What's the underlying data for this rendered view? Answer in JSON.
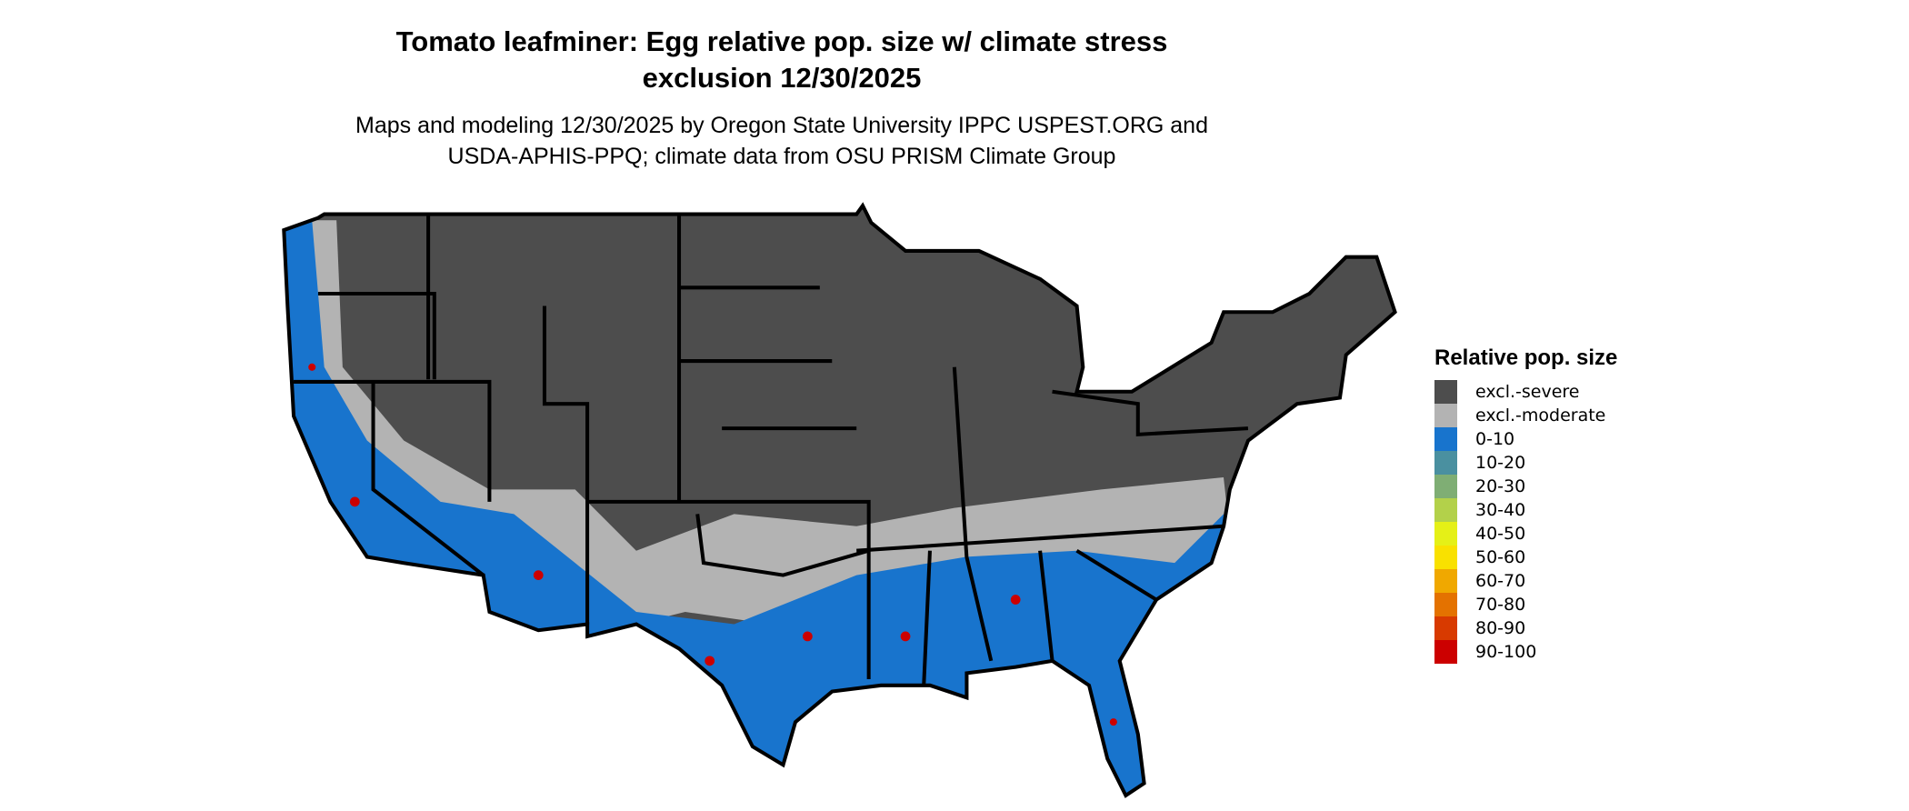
{
  "title_line1": "Tomato leafminer: Egg relative pop. size w/ climate stress",
  "title_line2": "exclusion 12/30/2025",
  "subtitle_line1": "Maps and modeling 12/30/2025 by Oregon State University IPPC USPEST.ORG and",
  "subtitle_line2": "USDA-APHIS-PPQ; climate data from OSU PRISM Climate Group",
  "legend": {
    "title": "Relative pop. size",
    "items": [
      {
        "label": "excl.-severe",
        "color": "#4d4d4d"
      },
      {
        "label": "excl.-moderate",
        "color": "#b3b3b3"
      },
      {
        "label": "0-10",
        "color": "#1874cd"
      },
      {
        "label": "10-20",
        "color": "#4a90a0"
      },
      {
        "label": "20-30",
        "color": "#7fae74"
      },
      {
        "label": "30-40",
        "color": "#b3d14a"
      },
      {
        "label": "40-50",
        "color": "#e5f017"
      },
      {
        "label": "50-60",
        "color": "#f9e100"
      },
      {
        "label": "60-70",
        "color": "#f0a800"
      },
      {
        "label": "70-80",
        "color": "#e47200"
      },
      {
        "label": "80-90",
        "color": "#d83a00"
      },
      {
        "label": "90-100",
        "color": "#cc0000"
      }
    ]
  }
}
